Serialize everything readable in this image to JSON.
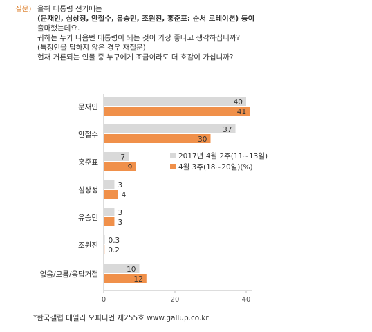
{
  "question": {
    "tag": "질문)",
    "lines": [
      "올해 대통령 선거에는",
      "(문재인, 심상정, 안철수, 유승민, 조원진, 홍준표: 순서 로테이션) 등이",
      "출마했는데요.",
      "귀하는 누가 다음번 대통령이 되는 것이 가장 좋다고 생각하십니까?",
      "(특정인을 답하지 않은 경우 재질문)",
      "현재 거론되는 인물 중 누구에게 조금이라도 더 호감이 가십니까?"
    ]
  },
  "chart_data": {
    "type": "bar",
    "orientation": "horizontal",
    "categories": [
      "문재인",
      "안철수",
      "홍준표",
      "심상정",
      "유승민",
      "조원진",
      "없음/모름/응답거절"
    ],
    "series": [
      {
        "name": "2017년 4월 2주(11~13일)",
        "values": [
          40,
          37,
          7,
          3,
          3,
          0.3,
          10
        ],
        "color": "#d9d9d9"
      },
      {
        "name": "4월 3주(18~20일)",
        "values": [
          41,
          30,
          9,
          4,
          3,
          0.2,
          12
        ],
        "color": "#f0904a"
      }
    ],
    "unit": "(%)",
    "xlim": [
      0,
      40
    ],
    "xticks": [
      "0",
      "20",
      "40"
    ],
    "legend_position": "right-middle"
  },
  "footer": "*한국갤럽 데일리 오피니언 제255호 www.gallup.co.kr"
}
